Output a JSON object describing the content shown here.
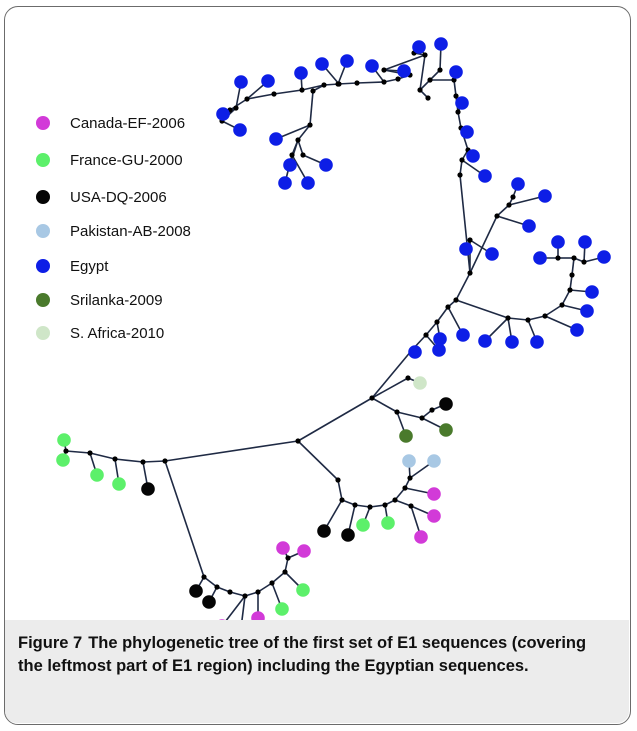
{
  "legend": {
    "items": [
      {
        "label": "Canada-EF-2006",
        "color": "#d23ad8"
      },
      {
        "label": "France-GU-2000",
        "color": "#5cf06a"
      },
      {
        "label": "USA-DQ-2006",
        "color": "#050505"
      },
      {
        "label": "Pakistan-AB-2008",
        "color": "#a8c8e4"
      },
      {
        "label": "Egypt",
        "color": "#0d1ee6"
      },
      {
        "label": "Srilanka-2009",
        "color": "#4a7a2c"
      },
      {
        "label": "S. Africa-2010",
        "color": "#cfe6c8"
      }
    ]
  },
  "caption": {
    "label": "Figure 7",
    "text": "The phylogenetic tree of the first set of E1 sequences (covering the leftmost part of E1 region) including the Egyptian sequences."
  },
  "colors": {
    "branch": "#1f2a44",
    "node": "#000000",
    "frame": "#6b6b6b",
    "caption_bg": "#ececec"
  }
}
